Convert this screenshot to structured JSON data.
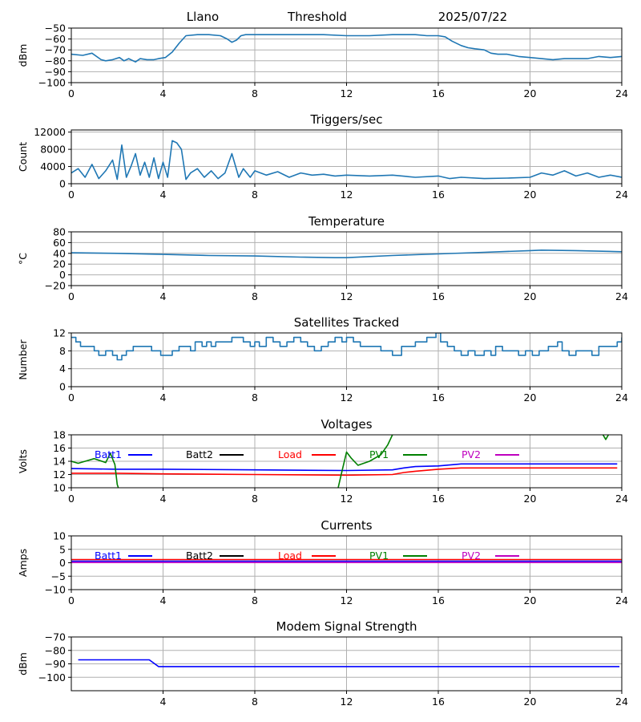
{
  "header": {
    "station": "Llano",
    "mode": "Threshold",
    "date": "2025/07/22"
  },
  "chart_data": [
    {
      "id": "signal",
      "type": "line",
      "title": "",
      "ylabel": "dBm",
      "xlim": [
        0,
        24
      ],
      "ylim": [
        -100,
        -50
      ],
      "xticks": [
        0,
        4,
        8,
        12,
        16,
        20,
        24
      ],
      "yticks": [
        -100,
        -90,
        -80,
        -70,
        -60,
        -50
      ],
      "grid": true,
      "series": [
        {
          "color": "#1f77b4",
          "x": [
            0,
            0.5,
            0.9,
            1.3,
            1.5,
            1.8,
            2.1,
            2.3,
            2.5,
            2.8,
            3.0,
            3.3,
            3.6,
            3.8,
            4.1,
            4.4,
            4.7,
            5.0,
            5.5,
            6.0,
            6.5,
            6.8,
            7.0,
            7.2,
            7.4,
            7.6,
            8.0,
            9,
            10,
            11,
            12,
            13,
            14,
            15,
            15.5,
            16,
            16.3,
            16.6,
            17,
            17.3,
            17.6,
            18.0,
            18.3,
            18.6,
            19.0,
            19.5,
            20.0,
            20.5,
            21.0,
            21.5,
            22.0,
            22.5,
            23.0,
            23.5,
            24
          ],
          "y": [
            -74,
            -75,
            -73,
            -79,
            -80,
            -79,
            -77,
            -80,
            -78,
            -81,
            -78,
            -79,
            -79,
            -78,
            -77,
            -72,
            -64,
            -57,
            -56,
            -56,
            -57,
            -60,
            -63,
            -61,
            -57,
            -56,
            -56,
            -56,
            -56,
            -56,
            -57,
            -57,
            -56,
            -56,
            -57,
            -57,
            -58,
            -62,
            -66,
            -68,
            -69,
            -70,
            -73,
            -74,
            -74,
            -76,
            -77,
            -78,
            -79,
            -78,
            -78,
            -78,
            -76,
            -77,
            -76
          ]
        }
      ]
    },
    {
      "id": "triggers",
      "type": "line",
      "title": "Triggers/sec",
      "ylabel": "Count",
      "xlim": [
        0,
        24
      ],
      "ylim": [
        0,
        12500
      ],
      "xticks": [
        0,
        4,
        8,
        12,
        16,
        20,
        24
      ],
      "yticks": [
        0,
        4000,
        8000,
        12000
      ],
      "grid": true,
      "series": [
        {
          "color": "#1f77b4",
          "x": [
            0,
            0.3,
            0.6,
            0.9,
            1.2,
            1.5,
            1.8,
            2.0,
            2.2,
            2.4,
            2.6,
            2.8,
            3.0,
            3.2,
            3.4,
            3.6,
            3.8,
            4.0,
            4.2,
            4.4,
            4.6,
            4.8,
            5.0,
            5.2,
            5.5,
            5.8,
            6.1,
            6.4,
            6.7,
            7.0,
            7.3,
            7.5,
            7.8,
            8.0,
            8.5,
            9,
            9.5,
            10,
            10.5,
            11,
            11.5,
            12,
            13,
            14,
            15,
            16,
            16.5,
            17,
            18,
            19,
            20,
            20.5,
            21,
            21.5,
            22,
            22.5,
            23,
            23.5,
            24
          ],
          "y": [
            2500,
            3500,
            1500,
            4500,
            1200,
            3000,
            5500,
            1000,
            9000,
            1500,
            4000,
            7000,
            2000,
            5000,
            1500,
            6000,
            1200,
            5000,
            1500,
            10000,
            9500,
            8000,
            1000,
            2500,
            3500,
            1500,
            3000,
            1200,
            2500,
            7000,
            1500,
            3500,
            1500,
            3000,
            2000,
            2800,
            1500,
            2500,
            2000,
            2200,
            1800,
            2000,
            1800,
            2000,
            1500,
            1800,
            1200,
            1500,
            1200,
            1300,
            1500,
            2500,
            2000,
            3000,
            1800,
            2500,
            1500,
            2000,
            1500
          ]
        }
      ]
    },
    {
      "id": "temperature",
      "type": "line",
      "title": "Temperature",
      "ylabel": "°C",
      "xlim": [
        0,
        24
      ],
      "ylim": [
        -20,
        80
      ],
      "xticks": [
        0,
        4,
        8,
        12,
        16,
        20,
        24
      ],
      "yticks": [
        -20,
        0,
        20,
        40,
        60,
        80
      ],
      "grid": true,
      "series": [
        {
          "color": "#1f77b4",
          "x": [
            0,
            2,
            4,
            6,
            8,
            10,
            11.5,
            12,
            13,
            14,
            16,
            18,
            20,
            20.5,
            22,
            24
          ],
          "y": [
            41,
            40,
            38,
            36,
            35,
            33,
            32,
            32,
            34,
            36,
            39,
            42,
            45,
            46,
            45,
            43
          ]
        }
      ]
    },
    {
      "id": "satellites",
      "type": "line",
      "title": "Satellites Tracked",
      "ylabel": "Number",
      "xlim": [
        0,
        24
      ],
      "ylim": [
        0,
        12
      ],
      "xticks": [
        0,
        4,
        8,
        12,
        16,
        20,
        24
      ],
      "yticks": [
        0,
        4,
        8,
        12
      ],
      "grid": true,
      "series": [
        {
          "color": "#1f77b4",
          "step": true,
          "x": [
            0,
            0.2,
            0.4,
            1.0,
            1.2,
            1.5,
            1.8,
            2.0,
            2.2,
            2.4,
            2.7,
            3.0,
            3.5,
            3.9,
            4.4,
            4.7,
            5.2,
            5.4,
            5.7,
            5.9,
            6.1,
            6.3,
            6.6,
            7.0,
            7.5,
            7.8,
            8.0,
            8.2,
            8.5,
            8.8,
            9.1,
            9.4,
            9.7,
            10.0,
            10.3,
            10.6,
            10.9,
            11.2,
            11.5,
            11.8,
            12.0,
            12.3,
            12.6,
            13.0,
            13.5,
            14.0,
            14.4,
            15.0,
            15.5,
            15.9,
            16.1,
            16.4,
            16.7,
            17.0,
            17.3,
            17.6,
            18.0,
            18.3,
            18.5,
            18.8,
            19.2,
            19.5,
            19.8,
            20.1,
            20.4,
            20.8,
            21.2,
            21.4,
            21.7,
            22.0,
            22.4,
            22.7,
            23.0,
            23.4,
            23.8,
            24
          ],
          "y": [
            11,
            10,
            9,
            8,
            7,
            8,
            7,
            6,
            7,
            8,
            9,
            9,
            8,
            7,
            8,
            9,
            8,
            10,
            9,
            10,
            9,
            10,
            10,
            11,
            10,
            9,
            10,
            9,
            11,
            10,
            9,
            10,
            11,
            10,
            9,
            8,
            9,
            10,
            11,
            10,
            11,
            10,
            9,
            9,
            8,
            7,
            9,
            10,
            11,
            12,
            10,
            9,
            8,
            7,
            8,
            7,
            8,
            7,
            9,
            8,
            8,
            7,
            8,
            7,
            8,
            9,
            10,
            8,
            7,
            8,
            8,
            7,
            9,
            9,
            10,
            11
          ]
        }
      ]
    },
    {
      "id": "voltages",
      "type": "line",
      "title": "Voltages",
      "ylabel": "Volts",
      "xlim": [
        0,
        24
      ],
      "ylim": [
        10,
        18
      ],
      "xticks": [
        0,
        4,
        8,
        12,
        16,
        20,
        24
      ],
      "yticks": [
        10,
        12,
        14,
        16,
        18
      ],
      "grid": true,
      "legend": [
        "Batt1",
        "Batt2",
        "Load",
        "PV1",
        "PV2"
      ],
      "series": [
        {
          "name": "Batt1",
          "color": "#0000ff",
          "x": [
            0,
            2,
            4,
            8,
            12,
            14,
            14.5,
            15,
            16,
            17,
            20,
            23.8
          ],
          "y": [
            12.9,
            12.8,
            12.8,
            12.7,
            12.6,
            12.7,
            13.0,
            13.2,
            13.3,
            13.6,
            13.6,
            13.6
          ]
        },
        {
          "name": "Load",
          "color": "#ff0000",
          "x": [
            0,
            2,
            4,
            8,
            12,
            14,
            14.5,
            15,
            16,
            17,
            20,
            23.8
          ],
          "y": [
            12.2,
            12.2,
            12.1,
            12.0,
            11.9,
            12.0,
            12.3,
            12.5,
            12.8,
            13.0,
            13.0,
            13.0
          ]
        },
        {
          "name": "PV1",
          "color": "#008000",
          "x": [
            0,
            0.3,
            0.6,
            1.0,
            1.5,
            1.6,
            1.7,
            1.9,
            2.0,
            2.1
          ],
          "y": [
            14.0,
            13.7,
            14.0,
            14.4,
            13.8,
            14.5,
            15.2,
            13.5,
            10.5,
            9.5
          ]
        },
        {
          "name": "PV1",
          "color": "#008000",
          "x": [
            11.6,
            11.8,
            12.0,
            12.2,
            12.5,
            13.0,
            13.5,
            13.8,
            14.0,
            14.2
          ],
          "y": [
            9.5,
            12.5,
            15.4,
            14.5,
            13.4,
            14.0,
            15.0,
            16.5,
            18.0,
            18.4
          ]
        },
        {
          "name": "PV1",
          "color": "#008000",
          "x": [
            23.1,
            23.3,
            23.5
          ],
          "y": [
            18.5,
            17.3,
            18.5
          ]
        }
      ]
    },
    {
      "id": "currents",
      "type": "line",
      "title": "Currents",
      "ylabel": "Amps",
      "xlim": [
        0,
        24
      ],
      "ylim": [
        -10,
        10
      ],
      "xticks": [
        0,
        4,
        8,
        12,
        16,
        20,
        24
      ],
      "yticks": [
        -10,
        -5,
        0,
        5,
        10
      ],
      "grid": true,
      "legend": [
        "Batt1",
        "Batt2",
        "Load",
        "PV1",
        "PV2"
      ],
      "series": [
        {
          "name": "Load",
          "color": "#ff0000",
          "x": [
            0,
            24
          ],
          "y": [
            1.2,
            1.2
          ]
        },
        {
          "name": "Batt1",
          "color": "#0000ff",
          "x": [
            0,
            24
          ],
          "y": [
            0.6,
            0.6
          ]
        },
        {
          "name": "PV2",
          "color": "#bf00bf",
          "x": [
            0,
            24
          ],
          "y": [
            0.1,
            0.1
          ]
        }
      ]
    },
    {
      "id": "modem",
      "type": "line",
      "title": "Modem Signal Strength",
      "ylabel": "dBm",
      "xlim": [
        0,
        24
      ],
      "ylim": [
        -110,
        -70
      ],
      "xticks": [
        4,
        8,
        12,
        16,
        20,
        24
      ],
      "yticks": [
        -100,
        -90,
        -80,
        -70
      ],
      "grid": true,
      "series": [
        {
          "color": "#0000ff",
          "x": [
            0.3,
            3.4,
            3.8,
            23.9
          ],
          "y": [
            -87,
            -87,
            -92,
            -92
          ]
        }
      ]
    }
  ],
  "legend_colors": {
    "Batt1": "#0000ff",
    "Batt2": "#000000",
    "Load": "#ff0000",
    "PV1": "#008000",
    "PV2": "#bf00bf"
  }
}
